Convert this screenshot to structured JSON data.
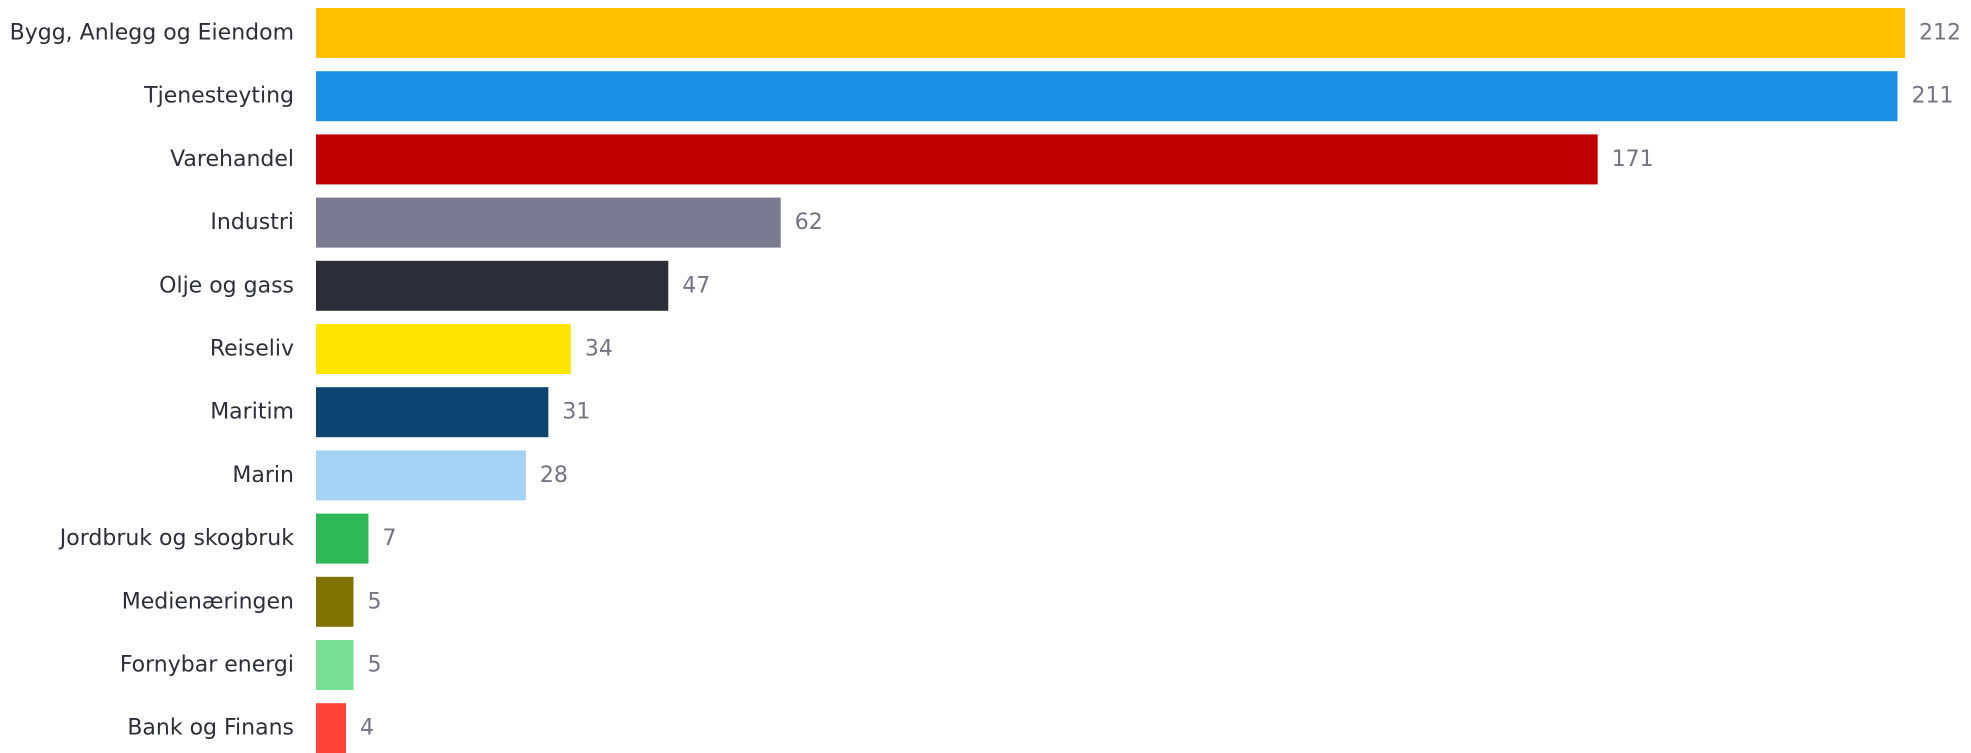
{
  "chart_data": {
    "type": "bar",
    "orientation": "horizontal",
    "categories": [
      "Bygg, Anlegg og Eiendom",
      "Tjenesteyting",
      "Varehandel",
      "Industri",
      "Olje og gass",
      "Reiseliv",
      "Maritim",
      "Marin",
      "Jordbruk og skogbruk",
      "Medienæringen",
      "Fornybar energi",
      "Bank og Finans"
    ],
    "values": [
      212,
      211,
      171,
      62,
      47,
      34,
      31,
      28,
      7,
      5,
      5,
      4
    ],
    "colors": [
      "#FFC000",
      "#1A8FE3",
      "#C00000",
      "#7A7A90",
      "#2E2E38",
      "#FFE600",
      "#0D4470",
      "#A5D2F5",
      "#2DB757",
      "#7F7300",
      "#79DF95",
      "#FF4136"
    ],
    "value_labels": [
      "212",
      "211",
      "171",
      "62",
      "47",
      "34",
      "31",
      "28",
      "7",
      "5",
      "5",
      "4"
    ],
    "xlim": [
      0,
      212
    ],
    "grid": false,
    "legend": "none",
    "title": "",
    "xlabel": "",
    "ylabel": ""
  }
}
